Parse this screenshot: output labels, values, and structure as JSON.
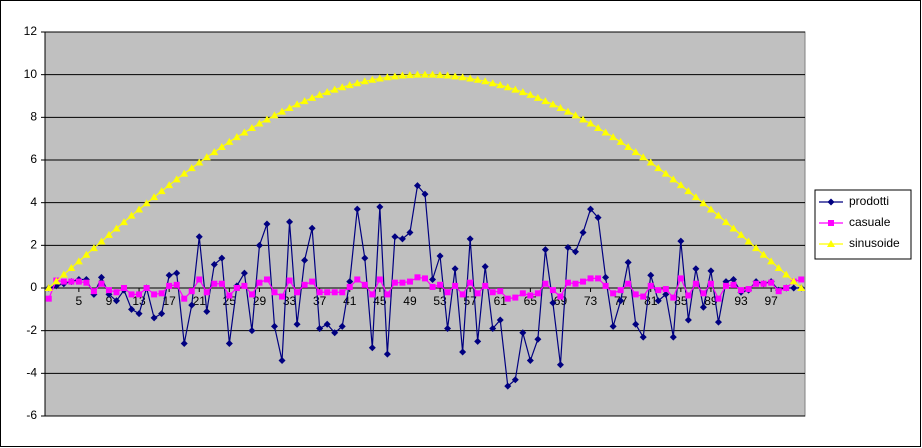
{
  "chart_data": {
    "type": "line",
    "categories": [
      null,
      null,
      null,
      null,
      5,
      null,
      null,
      null,
      9,
      null,
      null,
      null,
      13,
      null,
      null,
      null,
      17,
      null,
      null,
      null,
      21,
      null,
      null,
      null,
      25,
      null,
      null,
      null,
      29,
      null,
      null,
      null,
      33,
      null,
      null,
      null,
      37,
      null,
      null,
      null,
      41,
      null,
      null,
      null,
      45,
      null,
      null,
      null,
      49,
      null,
      null,
      null,
      53,
      null,
      null,
      null,
      57,
      null,
      null,
      null,
      61,
      null,
      null,
      null,
      65,
      null,
      null,
      null,
      69,
      null,
      null,
      null,
      73,
      null,
      null,
      null,
      77,
      null,
      null,
      null,
      81,
      null,
      null,
      null,
      85,
      null,
      null,
      null,
      89,
      null,
      null,
      null,
      93,
      null,
      null,
      null,
      97,
      null,
      null,
      null,
      null
    ],
    "series": [
      {
        "name": "prodotti",
        "color": "#000080",
        "marker": "diamond",
        "values": [
          0,
          0.1,
          0.2,
          0.3,
          0.4,
          0.4,
          -0.3,
          0.5,
          -0.3,
          -0.6,
          -0.1,
          -1.0,
          -1.2,
          0,
          -1.4,
          -1.2,
          0.6,
          0.7,
          -2.6,
          -0.8,
          2.4,
          -1.1,
          1.1,
          1.4,
          -2.6,
          0.1,
          0.7,
          -2.0,
          2.0,
          3.0,
          -1.8,
          -3.4,
          3.1,
          -1.7,
          1.3,
          2.8,
          -1.9,
          -1.7,
          -2.1,
          -1.8,
          0.3,
          3.7,
          1.4,
          -2.8,
          3.8,
          -3.1,
          2.4,
          2.3,
          2.6,
          4.8,
          4.4,
          0.4,
          1.5,
          -1.9,
          0.9,
          -3.0,
          2.3,
          -2.5,
          1.0,
          -1.9,
          -1.5,
          -4.6,
          -4.3,
          -2.1,
          -3.4,
          -2.4,
          1.8,
          -0.7,
          -3.6,
          1.9,
          1.7,
          2.6,
          3.7,
          3.3,
          0.5,
          -1.8,
          -0.6,
          1.2,
          -1.7,
          -2.3,
          0.6,
          -0.6,
          -0.3,
          -2.3,
          2.2,
          -1.5,
          0.9,
          -0.9,
          0.8,
          -1.6,
          0.3,
          0.4,
          -0.2,
          -0.1,
          0.3,
          0.2,
          0.3,
          -0.1,
          0,
          0,
          0
        ]
      },
      {
        "name": "casuale",
        "color": "#ff00ff",
        "marker": "square",
        "values": [
          -0.5,
          0.35,
          0.3,
          0.3,
          0.3,
          0.25,
          -0.15,
          0.2,
          -0.1,
          -0.2,
          0,
          -0.3,
          -0.3,
          0,
          -0.3,
          -0.25,
          0.1,
          0.15,
          -0.5,
          -0.15,
          0.4,
          -0.2,
          0.2,
          0.2,
          -0.35,
          0,
          0.1,
          -0.3,
          0.25,
          0.4,
          -0.2,
          -0.4,
          0.35,
          -0.2,
          0.15,
          0.3,
          -0.2,
          -0.2,
          -0.2,
          -0.2,
          0.05,
          0.4,
          0.15,
          -0.3,
          0.4,
          -0.3,
          0.25,
          0.25,
          0.3,
          0.5,
          0.45,
          0.05,
          0.15,
          -0.2,
          0.1,
          -0.3,
          0.25,
          -0.25,
          0.1,
          -0.2,
          -0.15,
          -0.5,
          -0.45,
          -0.25,
          -0.35,
          -0.25,
          0.2,
          -0.1,
          -0.4,
          0.25,
          0.2,
          0.3,
          0.45,
          0.45,
          0.1,
          -0.25,
          -0.1,
          0.2,
          -0.3,
          -0.4,
          0.1,
          -0.1,
          -0.05,
          -0.45,
          0.45,
          -0.35,
          0.2,
          -0.25,
          0.2,
          -0.5,
          0.1,
          0.15,
          -0.1,
          -0.05,
          0.2,
          0.2,
          0.25,
          -0.15,
          0,
          0.3,
          0.4
        ]
      },
      {
        "name": "sinusoide",
        "color": "#ffff00",
        "marker": "triangle",
        "values": [
          0,
          0.31,
          0.63,
          0.94,
          1.25,
          1.56,
          1.87,
          2.18,
          2.49,
          2.79,
          3.09,
          3.39,
          3.68,
          3.97,
          4.26,
          4.54,
          4.82,
          5.09,
          5.36,
          5.62,
          5.88,
          6.13,
          6.37,
          6.61,
          6.85,
          7.07,
          7.29,
          7.5,
          7.71,
          7.9,
          8.09,
          8.27,
          8.44,
          8.61,
          8.76,
          8.91,
          9.05,
          9.18,
          9.3,
          9.41,
          9.51,
          9.6,
          9.69,
          9.76,
          9.82,
          9.88,
          9.92,
          9.96,
          9.98,
          10.0,
          10,
          10.0,
          9.98,
          9.96,
          9.92,
          9.88,
          9.82,
          9.76,
          9.69,
          9.6,
          9.51,
          9.41,
          9.3,
          9.18,
          9.05,
          8.91,
          8.76,
          8.61,
          8.44,
          8.27,
          8.09,
          7.9,
          7.71,
          7.5,
          7.29,
          7.07,
          6.85,
          6.61,
          6.37,
          6.13,
          5.88,
          5.62,
          5.36,
          5.09,
          4.82,
          4.54,
          4.26,
          3.97,
          3.68,
          3.39,
          3.09,
          2.79,
          2.49,
          2.18,
          1.87,
          1.56,
          1.25,
          0.94,
          0.63,
          0.31,
          0
        ]
      }
    ],
    "ylim": [
      -6,
      12
    ],
    "yticks": [
      -6,
      -4,
      -2,
      0,
      2,
      4,
      6,
      8,
      10,
      12
    ],
    "grid": true,
    "legend": "right",
    "plot_background": "#c0c0c0"
  }
}
